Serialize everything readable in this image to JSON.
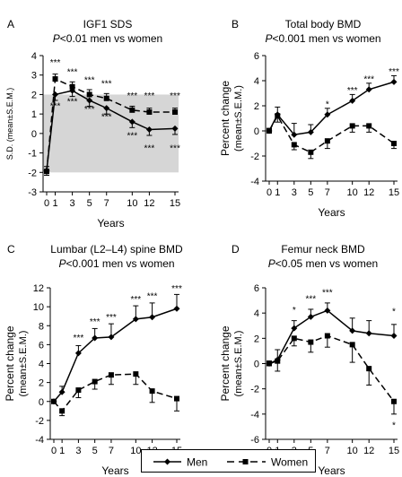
{
  "x_axis_label": "Years",
  "legend": {
    "men": "Men",
    "women": "Women"
  },
  "chart_data": [
    {
      "panel": "A",
      "type": "line",
      "title": "IGF1 SDS",
      "subtitle": "P<0.01 men vs women",
      "ylabel": "S.D. (mean±S.E.M.)",
      "ylim": [
        -3,
        4
      ],
      "yticks": [
        -3,
        -2,
        -1,
        0,
        1,
        2,
        3,
        4
      ],
      "xticks": [
        "0",
        "1",
        "3",
        "5",
        "7",
        "10",
        "12",
        "15"
      ],
      "shaded_band": [
        -2,
        2
      ],
      "series": [
        {
          "name": "Men",
          "x": [
            0,
            1,
            3,
            5,
            7,
            10,
            12,
            15
          ],
          "y": [
            -1.9,
            2.0,
            2.2,
            1.7,
            1.3,
            0.6,
            0.2,
            0.25
          ],
          "err": [
            0.2,
            0.3,
            0.3,
            0.3,
            0.3,
            0.3,
            0.3,
            0.3
          ]
        },
        {
          "name": "Women",
          "x": [
            0,
            1,
            3,
            5,
            7,
            10,
            12,
            15
          ],
          "y": [
            -1.95,
            2.8,
            2.4,
            2.0,
            1.8,
            1.2,
            1.1,
            1.1
          ],
          "err": [
            0.2,
            0.25,
            0.25,
            0.25,
            0.25,
            0.2,
            0.2,
            0.2
          ]
        }
      ],
      "annotations": [
        {
          "x": 1,
          "y": 3.5,
          "text": "***"
        },
        {
          "x": 3,
          "y": 3.0,
          "text": "***"
        },
        {
          "x": 5,
          "y": 2.6,
          "text": "***"
        },
        {
          "x": 7,
          "y": 2.4,
          "text": "***"
        },
        {
          "x": 10,
          "y": 1.8,
          "text": "***"
        },
        {
          "x": 12,
          "y": 1.8,
          "text": "***"
        },
        {
          "x": 15,
          "y": 1.8,
          "text": "***"
        },
        {
          "x": 1,
          "y": 1.25,
          "text": "***"
        },
        {
          "x": 3,
          "y": 1.5,
          "text": "***"
        },
        {
          "x": 5,
          "y": 1.1,
          "text": "***"
        },
        {
          "x": 7,
          "y": 0.7,
          "text": "***"
        },
        {
          "x": 10,
          "y": -0.25,
          "text": "***"
        },
        {
          "x": 12,
          "y": -0.9,
          "text": "***"
        },
        {
          "x": 15,
          "y": -0.9,
          "text": "***"
        }
      ]
    },
    {
      "panel": "B",
      "type": "line",
      "title": "Total body BMD",
      "subtitle": "P<0.001 men vs women",
      "ylabel": "Percent change (mean±S.E.M.)",
      "ylim": [
        -4,
        6
      ],
      "yticks": [
        -4,
        -2,
        0,
        2,
        4,
        6
      ],
      "xticks": [
        "0",
        "1",
        "3",
        "5",
        "7",
        "10",
        "12",
        "15"
      ],
      "series": [
        {
          "name": "Men",
          "x": [
            0,
            1,
            3,
            5,
            7,
            10,
            12,
            15
          ],
          "y": [
            0,
            1.3,
            -0.3,
            -0.1,
            1.3,
            2.4,
            3.3,
            3.9
          ],
          "err": [
            0.2,
            0.6,
            0.9,
            0.6,
            0.5,
            0.5,
            0.5,
            0.5
          ]
        },
        {
          "name": "Women",
          "x": [
            0,
            1,
            3,
            5,
            7,
            10,
            12,
            15
          ],
          "y": [
            0,
            1.2,
            -1.1,
            -1.7,
            -0.8,
            0.4,
            0.4,
            -1.0
          ],
          "err": [
            0.2,
            0.5,
            0.4,
            0.5,
            0.6,
            0.5,
            0.5,
            0.4
          ]
        }
      ],
      "annotations": [
        {
          "x": 7,
          "y": 1.9,
          "text": "*"
        },
        {
          "x": 10,
          "y": 3.0,
          "text": "***"
        },
        {
          "x": 12,
          "y": 3.9,
          "text": "***"
        },
        {
          "x": 15,
          "y": 4.5,
          "text": "***"
        }
      ]
    },
    {
      "panel": "C",
      "type": "line",
      "title": "Lumbar (L2–L4) spine BMD",
      "subtitle": "P<0.001 men vs women",
      "ylabel": "Percent change (mean±S.E.M.)",
      "ylim": [
        -4,
        12
      ],
      "yticks": [
        -4,
        -2,
        0,
        2,
        4,
        6,
        8,
        10,
        12
      ],
      "xticks": [
        "0",
        "1",
        "3",
        "5",
        "7",
        "10",
        "12",
        "15"
      ],
      "series": [
        {
          "name": "Men",
          "x": [
            0,
            1,
            3,
            5,
            7,
            10,
            12,
            15
          ],
          "y": [
            0,
            1.0,
            5.1,
            6.7,
            6.8,
            8.7,
            8.9,
            9.8
          ],
          "err": [
            0.2,
            0.6,
            0.8,
            1.0,
            1.4,
            1.4,
            1.5,
            1.5
          ]
        },
        {
          "name": "Women",
          "x": [
            0,
            1,
            3,
            5,
            7,
            10,
            12,
            15
          ],
          "y": [
            0,
            -1.0,
            1.2,
            2.1,
            2.8,
            2.9,
            1.1,
            0.3
          ],
          "err": [
            0.2,
            0.5,
            0.8,
            0.8,
            1.0,
            1.1,
            1.2,
            1.3
          ]
        }
      ],
      "annotations": [
        {
          "x": 3,
          "y": 6.4,
          "text": "***"
        },
        {
          "x": 5,
          "y": 8.1,
          "text": "***"
        },
        {
          "x": 7,
          "y": 8.6,
          "text": "***"
        },
        {
          "x": 10,
          "y": 10.5,
          "text": "***"
        },
        {
          "x": 12,
          "y": 10.8,
          "text": "***"
        },
        {
          "x": 15,
          "y": 11.6,
          "text": "***"
        }
      ]
    },
    {
      "panel": "D",
      "type": "line",
      "title": "Femur neck BMD",
      "subtitle": "P<0.05 men vs women",
      "ylabel": "Percent change (mean±S.E.M.)",
      "ylim": [
        -6,
        6
      ],
      "yticks": [
        -6,
        -4,
        -2,
        0,
        2,
        4,
        6
      ],
      "xticks": [
        "0",
        "1",
        "3",
        "5",
        "7",
        "10",
        "12",
        "15"
      ],
      "series": [
        {
          "name": "Men",
          "x": [
            0,
            1,
            3,
            5,
            7,
            10,
            12,
            15
          ],
          "y": [
            0,
            0.3,
            2.8,
            3.7,
            4.2,
            2.6,
            2.4,
            2.2
          ],
          "err": [
            0.2,
            0.8,
            0.6,
            0.6,
            0.6,
            1.0,
            1.0,
            0.9
          ]
        },
        {
          "name": "Women",
          "x": [
            0,
            1,
            3,
            5,
            7,
            10,
            12,
            15
          ],
          "y": [
            0,
            0.2,
            2.0,
            1.7,
            2.2,
            1.5,
            -0.4,
            -3.0
          ],
          "err": [
            0.2,
            0.8,
            0.6,
            0.8,
            0.9,
            1.4,
            1.3,
            1.0
          ]
        }
      ],
      "annotations": [
        {
          "x": 3,
          "y": 4.0,
          "text": "*"
        },
        {
          "x": 5,
          "y": 4.9,
          "text": "***"
        },
        {
          "x": 7,
          "y": 5.4,
          "text": "***"
        },
        {
          "x": 15,
          "y": 3.9,
          "text": "*"
        },
        {
          "x": 15,
          "y": -5.1,
          "text": "*"
        }
      ]
    }
  ]
}
